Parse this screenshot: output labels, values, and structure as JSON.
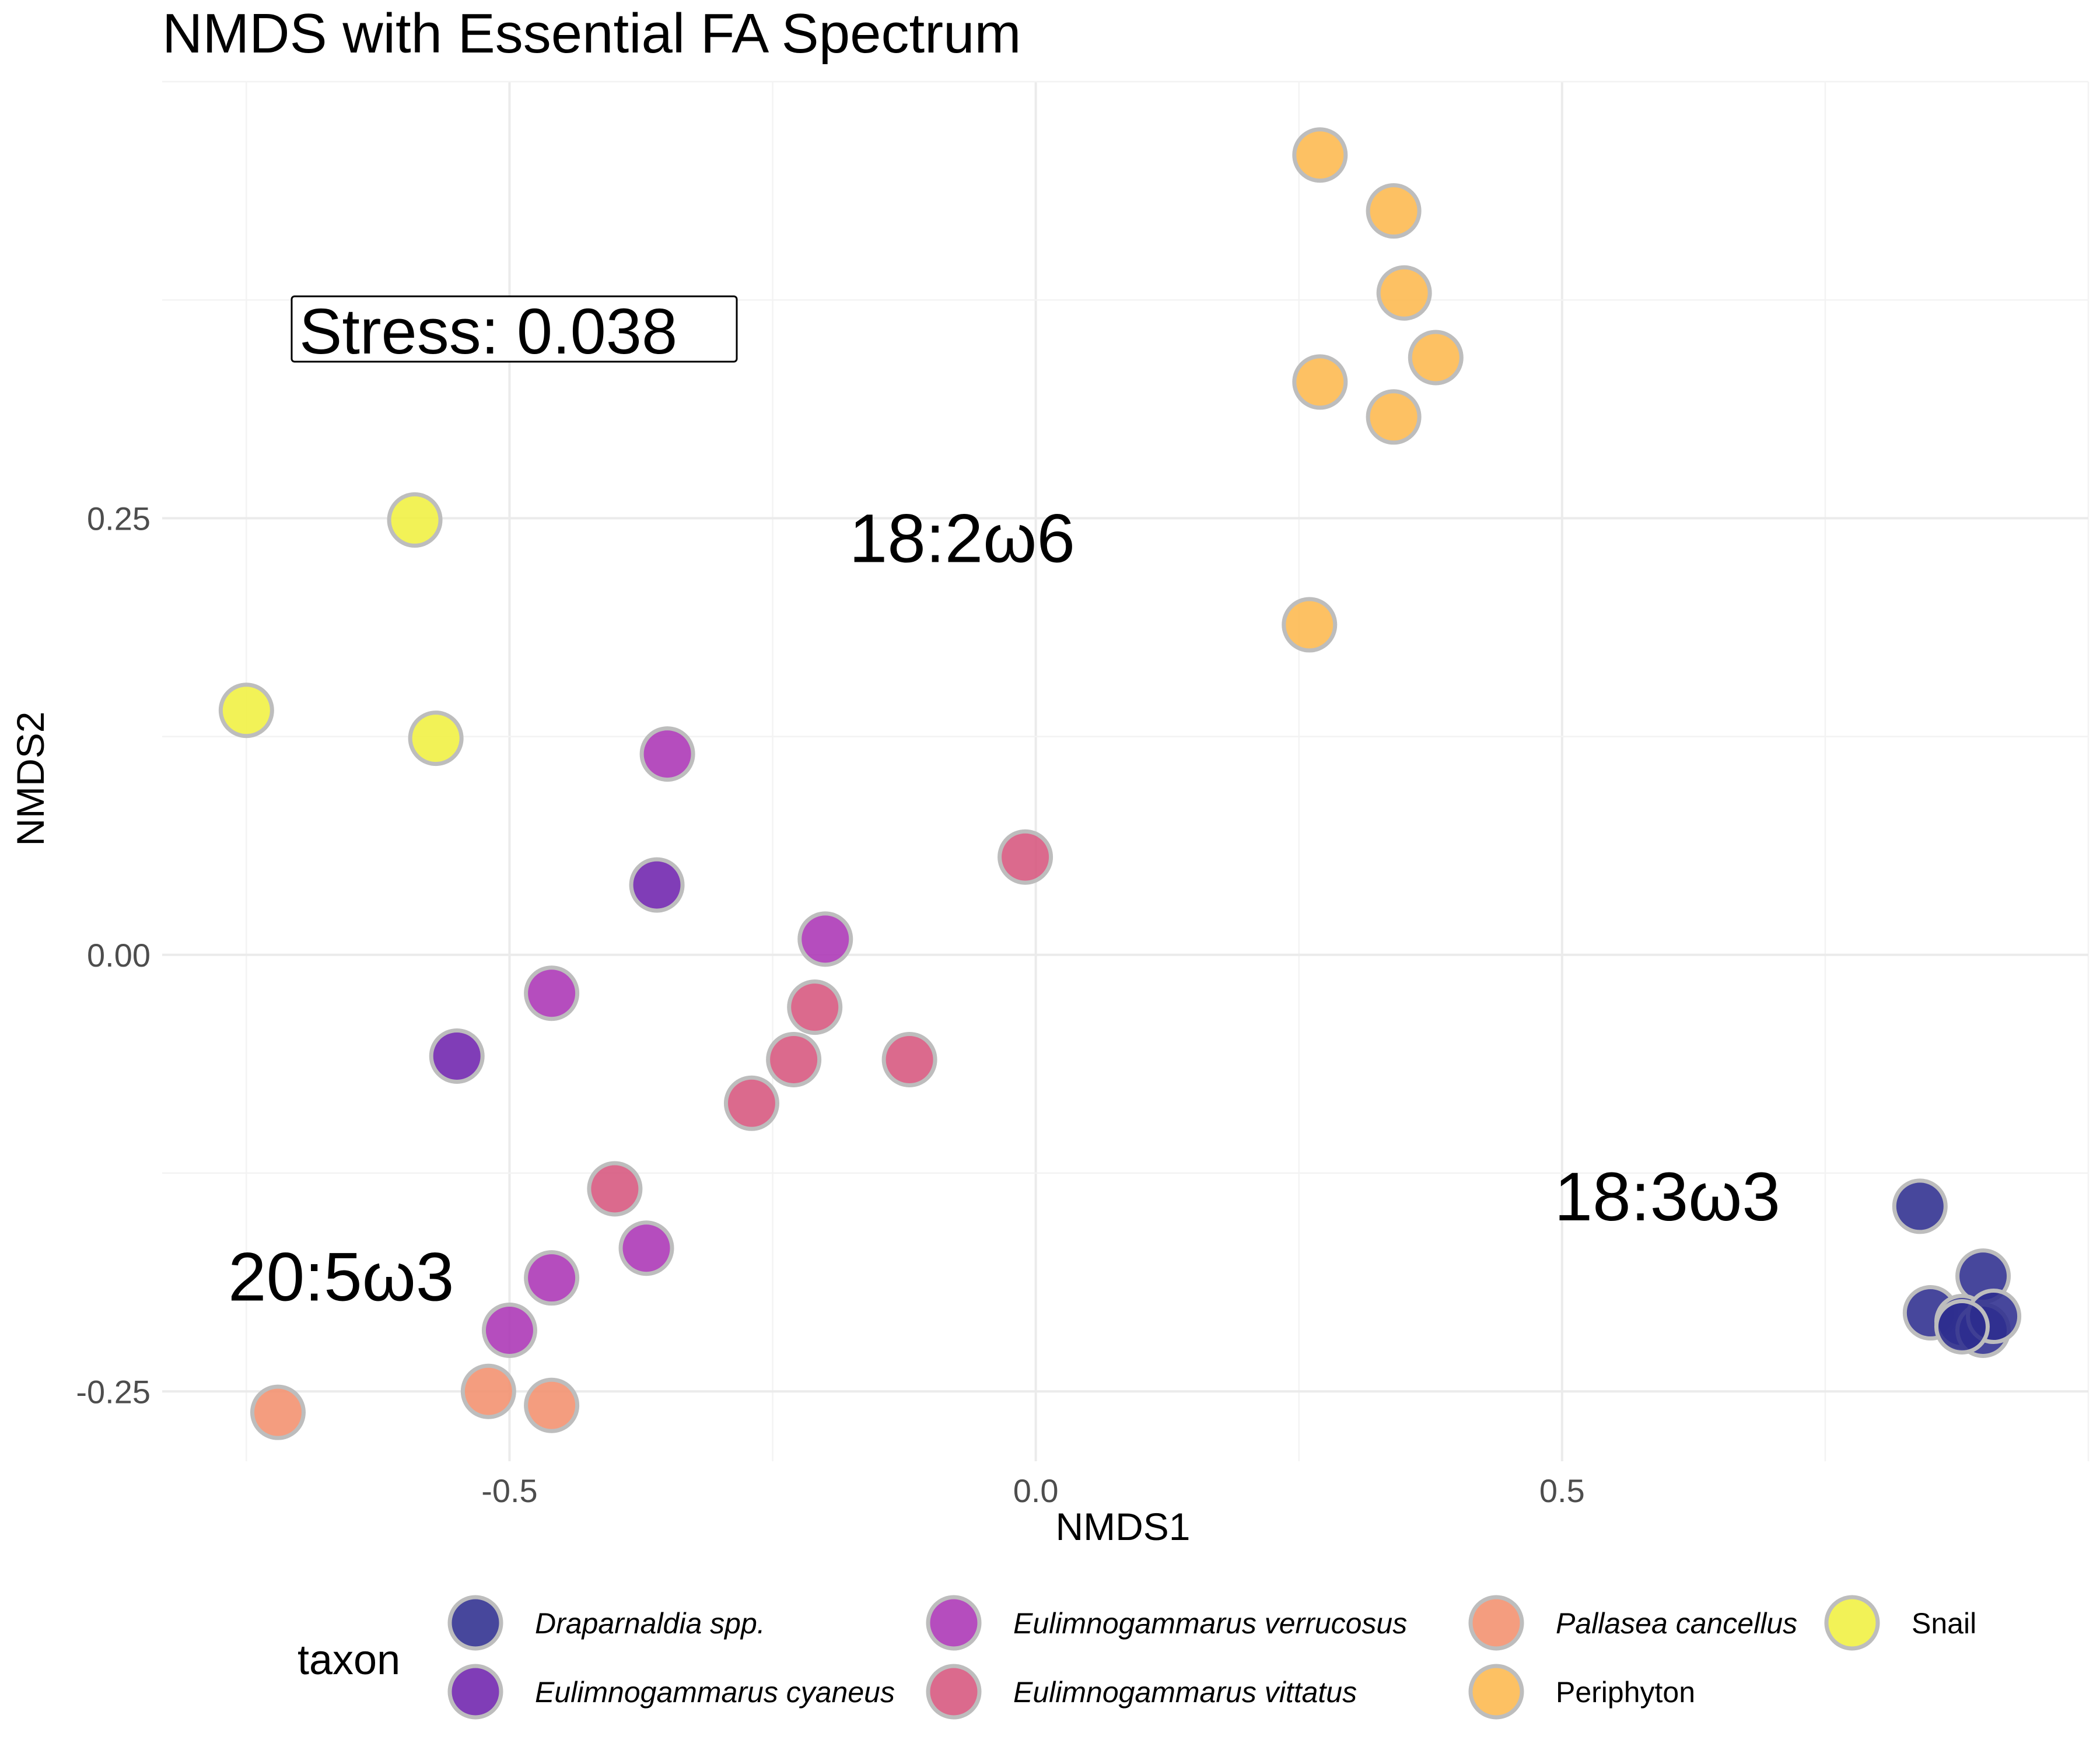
{
  "chart_data": {
    "type": "scatter",
    "title": "NMDS with Essential FA Spectrum",
    "xlabel": "NMDS1",
    "ylabel": "NMDS2",
    "xlim": [
      -0.83,
      1.0
    ],
    "ylim": [
      -0.29,
      0.5
    ],
    "x_ticks": [
      -0.5,
      0.0,
      0.5
    ],
    "x_tick_labels": [
      "-0.5",
      "0.0",
      "0.5"
    ],
    "y_ticks": [
      -0.25,
      0.0,
      0.25
    ],
    "y_tick_labels": [
      "-0.25",
      "0.00",
      "0.25"
    ],
    "grid": true,
    "legend": {
      "title": "taxon",
      "placement": "bottom"
    },
    "stress_label": "Stress:  0.038",
    "annotations": [
      {
        "text": "18:2ω6",
        "x": -0.07,
        "y": 0.225
      },
      {
        "text": "18:3ω3",
        "x": 0.6,
        "y": -0.152
      },
      {
        "text": "20:5ω3",
        "x": -0.66,
        "y": -0.198
      }
    ],
    "series": [
      {
        "name": "Draparnaldia spp.",
        "italic": true,
        "color": "#2e2d8e",
        "points": [
          [
            0.84,
            -0.144
          ],
          [
            0.9,
            -0.184
          ],
          [
            0.85,
            -0.205
          ],
          [
            0.88,
            -0.21
          ],
          [
            0.9,
            -0.215
          ],
          [
            0.91,
            -0.207
          ],
          [
            0.88,
            -0.213
          ]
        ]
      },
      {
        "name": "Eulimnogammarus cyaneus",
        "italic": true,
        "color": "#6e22ad",
        "points": [
          [
            -0.36,
            0.04
          ],
          [
            -0.55,
            -0.058
          ]
        ]
      },
      {
        "name": "Eulimnogammarus verrucosus",
        "italic": true,
        "color": "#ab34b5",
        "points": [
          [
            -0.35,
            0.115
          ],
          [
            -0.2,
            0.009
          ],
          [
            -0.46,
            -0.022
          ],
          [
            -0.37,
            -0.168
          ],
          [
            -0.46,
            -0.185
          ],
          [
            -0.5,
            -0.215
          ]
        ]
      },
      {
        "name": "Eulimnogammarus vittatus",
        "italic": true,
        "color": "#d6557d",
        "points": [
          [
            -0.01,
            0.056
          ],
          [
            -0.21,
            -0.03
          ],
          [
            -0.23,
            -0.06
          ],
          [
            -0.12,
            -0.06
          ],
          [
            -0.27,
            -0.085
          ],
          [
            -0.4,
            -0.134
          ]
        ]
      },
      {
        "name": "Pallasea cancellus",
        "italic": true,
        "color": "#f2906d",
        "points": [
          [
            -0.72,
            -0.262
          ],
          [
            -0.52,
            -0.25
          ],
          [
            -0.46,
            -0.258
          ]
        ]
      },
      {
        "name": "Periphyton",
        "italic": false,
        "color": "#fdb84d",
        "points": [
          [
            0.27,
            0.458
          ],
          [
            0.34,
            0.426
          ],
          [
            0.35,
            0.379
          ],
          [
            0.38,
            0.342
          ],
          [
            0.27,
            0.328
          ],
          [
            0.34,
            0.308
          ],
          [
            0.26,
            0.189
          ]
        ]
      },
      {
        "name": "Snail",
        "italic": false,
        "color": "#f0f040",
        "points": [
          [
            -0.59,
            0.249
          ],
          [
            -0.75,
            0.14
          ],
          [
            -0.57,
            0.124
          ]
        ]
      }
    ]
  }
}
